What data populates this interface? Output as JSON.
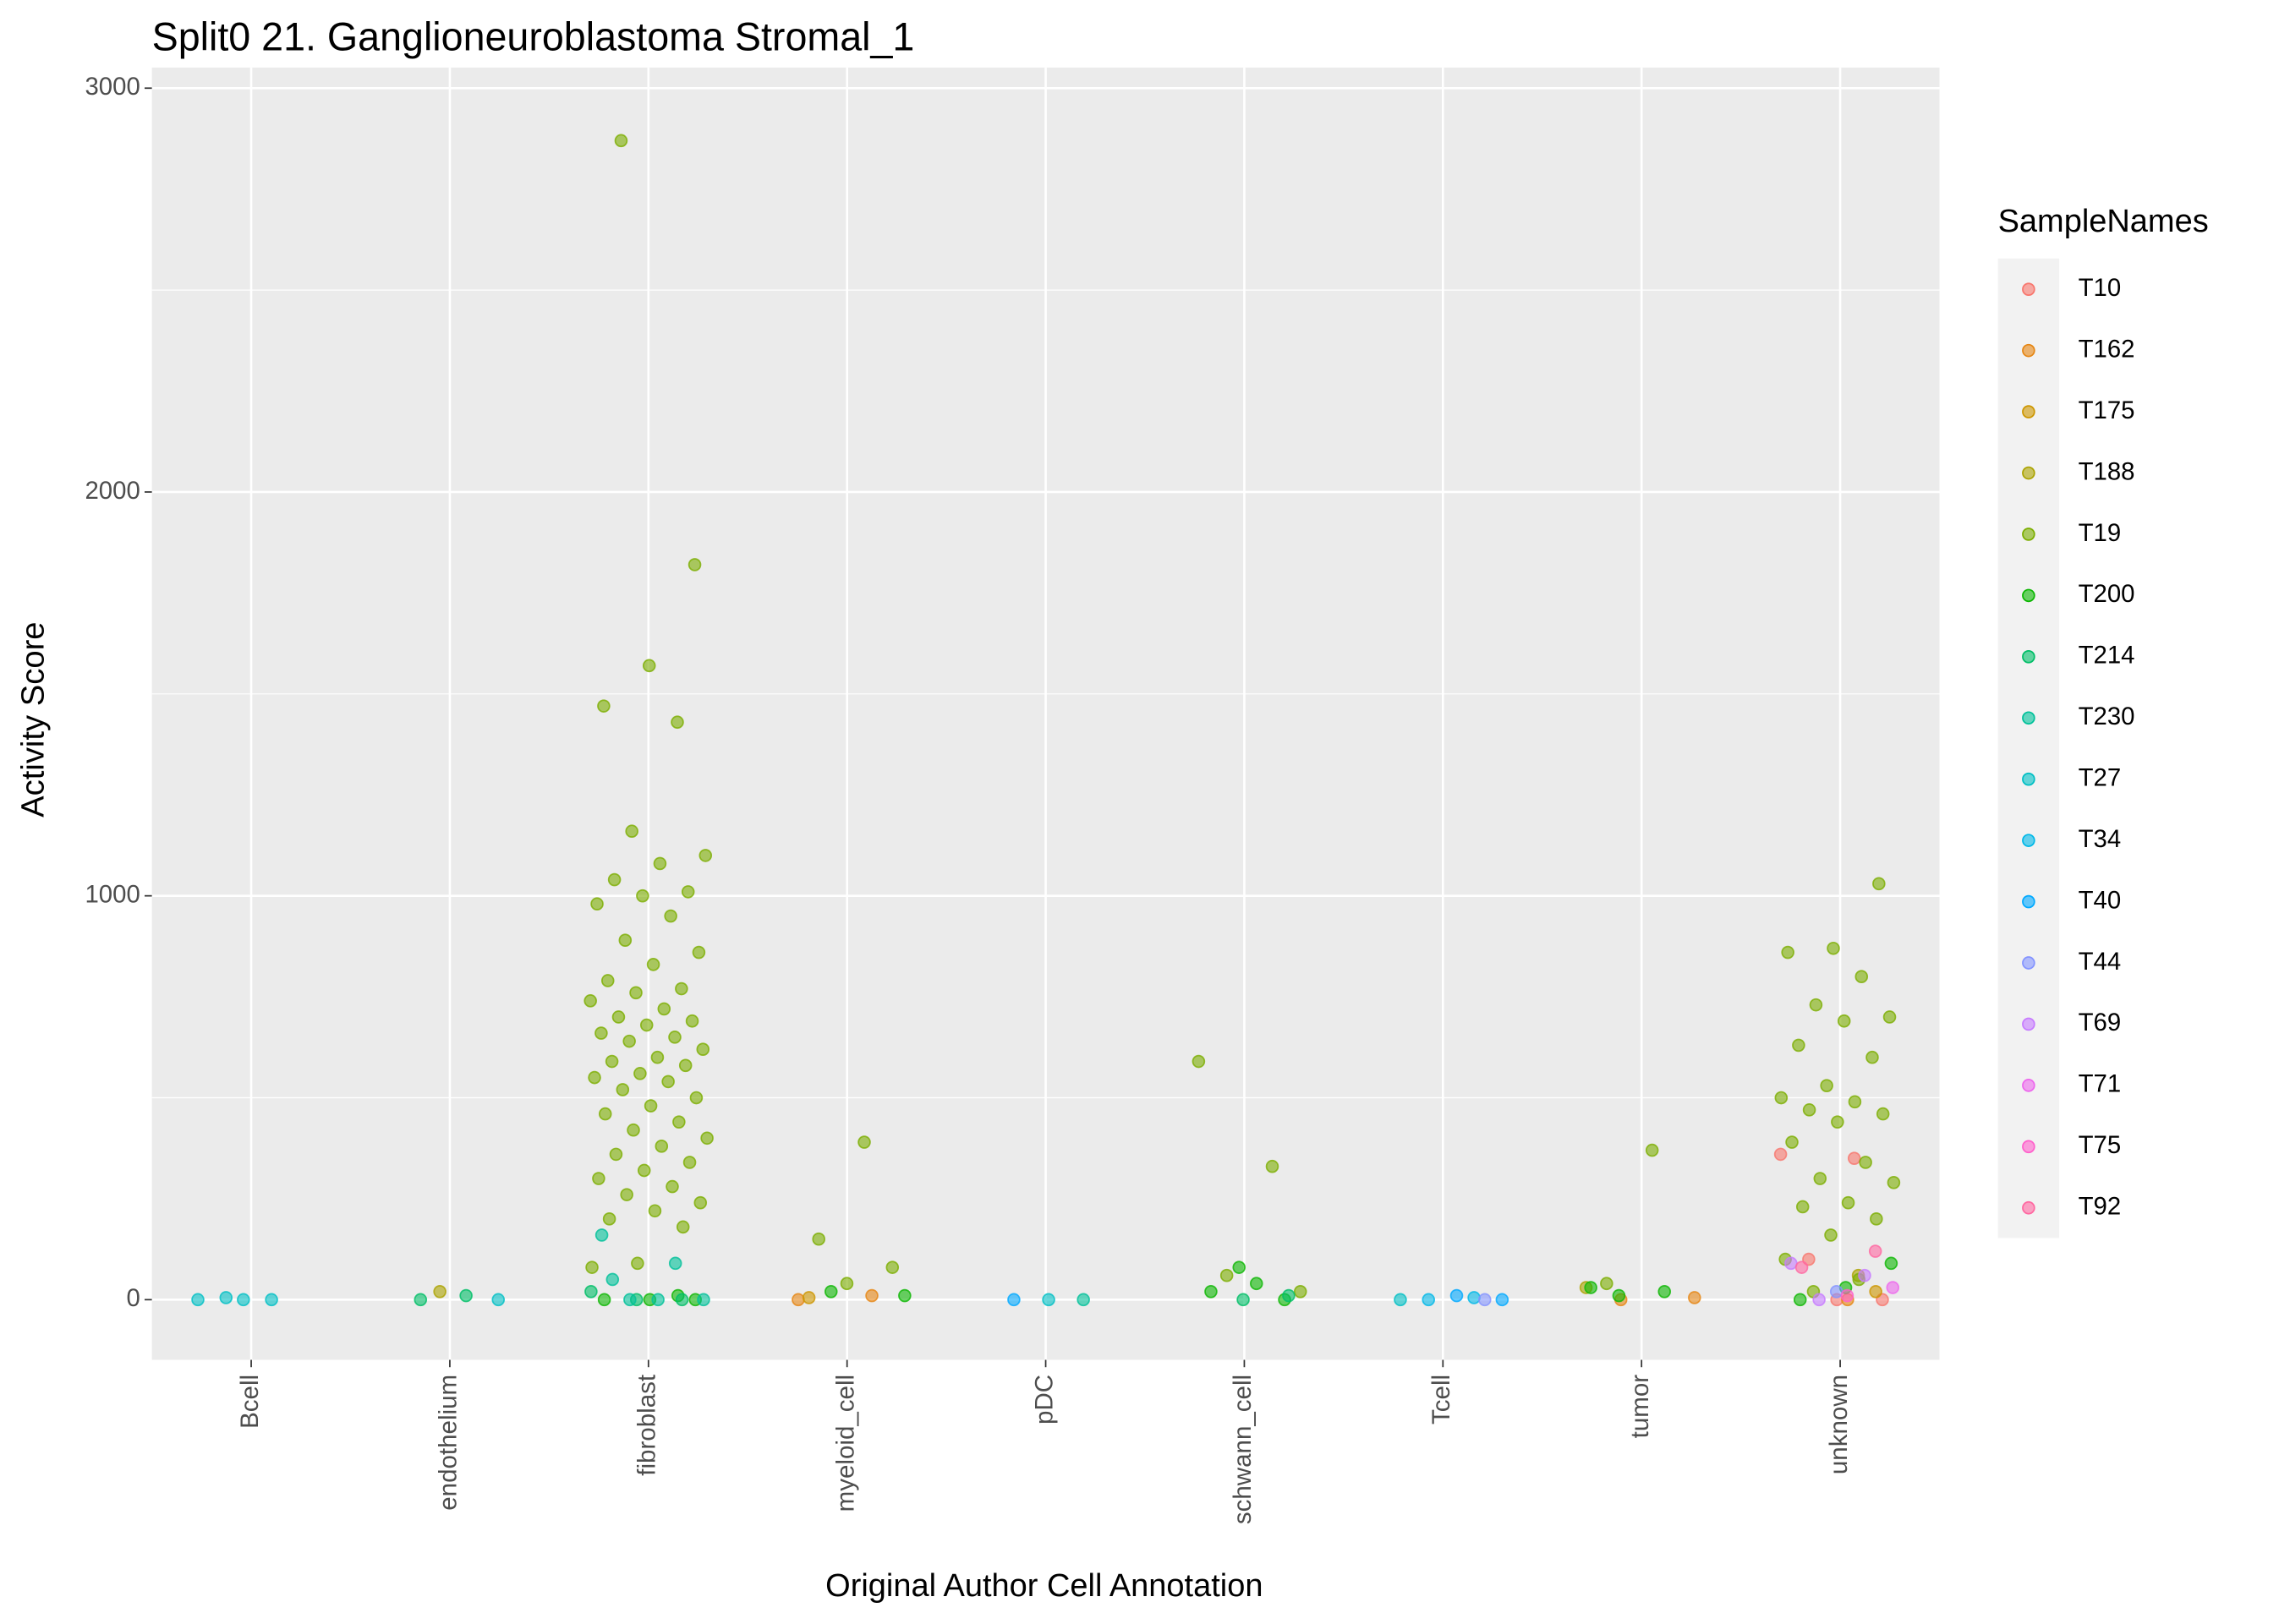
{
  "chart_data": {
    "type": "strip",
    "title": "Split0 21. Ganglioneuroblastoma Stromal_1",
    "x_label": "Original Author Cell Annotation",
    "y_label": "Activity Score",
    "legend_title": "SampleNames",
    "legend": "right",
    "grid": true,
    "categories": [
      "Bcell",
      "endothelium",
      "fibroblast",
      "myeloid_cell",
      "pDC",
      "schwann_cell",
      "Tcell",
      "tumor",
      "unknown"
    ],
    "ylim": [
      -149,
      3051
    ],
    "yticks": [
      0,
      1000,
      2000,
      3000
    ],
    "series": [
      {
        "name": "T10",
        "color": "#F8766D",
        "categories": [
          "unknown",
          "unknown",
          "unknown",
          "unknown",
          "unknown"
        ],
        "values": [
          360,
          350,
          100,
          0,
          0
        ]
      },
      {
        "name": "T162",
        "color": "#E68613",
        "categories": [
          "myeloid_cell",
          "myeloid_cell",
          "tumor",
          "tumor",
          "unknown"
        ],
        "values": [
          0,
          10,
          0,
          5,
          0
        ]
      },
      {
        "name": "T175",
        "color": "#CD9600",
        "categories": [
          "myeloid_cell",
          "unknown"
        ],
        "values": [
          5,
          20
        ]
      },
      {
        "name": "T188",
        "color": "#ABA300",
        "categories": [
          "endothelium",
          "tumor",
          "unknown"
        ],
        "values": [
          20,
          30,
          60
        ]
      },
      {
        "name": "T19",
        "color": "#7CAE00",
        "categories": [
          "fibroblast",
          "fibroblast",
          "fibroblast",
          "fibroblast",
          "fibroblast",
          "fibroblast",
          "fibroblast",
          "fibroblast",
          "fibroblast",
          "fibroblast",
          "fibroblast",
          "fibroblast",
          "fibroblast",
          "fibroblast",
          "fibroblast",
          "fibroblast",
          "fibroblast",
          "fibroblast",
          "fibroblast",
          "fibroblast",
          "fibroblast",
          "fibroblast",
          "fibroblast",
          "fibroblast",
          "fibroblast",
          "fibroblast",
          "fibroblast",
          "fibroblast",
          "fibroblast",
          "fibroblast",
          "fibroblast",
          "fibroblast",
          "fibroblast",
          "fibroblast",
          "fibroblast",
          "fibroblast",
          "fibroblast",
          "fibroblast",
          "fibroblast",
          "fibroblast",
          "fibroblast",
          "fibroblast",
          "fibroblast",
          "fibroblast",
          "fibroblast",
          "fibroblast",
          "fibroblast",
          "fibroblast",
          "fibroblast",
          "fibroblast",
          "fibroblast",
          "fibroblast",
          "fibroblast",
          "fibroblast",
          "myeloid_cell",
          "myeloid_cell",
          "myeloid_cell",
          "myeloid_cell",
          "schwann_cell",
          "schwann_cell",
          "schwann_cell",
          "schwann_cell",
          "tumor",
          "tumor",
          "unknown",
          "unknown",
          "unknown",
          "unknown",
          "unknown",
          "unknown",
          "unknown",
          "unknown",
          "unknown",
          "unknown",
          "unknown",
          "unknown",
          "unknown",
          "unknown",
          "unknown",
          "unknown",
          "unknown",
          "unknown",
          "unknown",
          "unknown",
          "unknown",
          "unknown",
          "unknown",
          "unknown",
          "unknown",
          "unknown"
        ],
        "values": [
          2870,
          1820,
          1570,
          1470,
          1430,
          1160,
          1100,
          1080,
          1040,
          1010,
          1000,
          980,
          950,
          890,
          860,
          830,
          790,
          770,
          760,
          740,
          720,
          700,
          690,
          680,
          660,
          650,
          640,
          620,
          600,
          590,
          580,
          560,
          550,
          540,
          520,
          500,
          480,
          460,
          440,
          420,
          400,
          380,
          360,
          340,
          320,
          300,
          280,
          260,
          240,
          220,
          200,
          180,
          90,
          80,
          390,
          150,
          80,
          40,
          590,
          330,
          60,
          20,
          370,
          40,
          1030,
          870,
          860,
          800,
          730,
          700,
          690,
          630,
          600,
          530,
          500,
          490,
          470,
          460,
          440,
          390,
          340,
          300,
          290,
          240,
          230,
          200,
          160,
          100,
          50,
          20
        ]
      },
      {
        "name": "T200",
        "color": "#0CB702",
        "categories": [
          "fibroblast",
          "fibroblast",
          "fibroblast",
          "fibroblast",
          "myeloid_cell",
          "myeloid_cell",
          "schwann_cell",
          "schwann_cell",
          "schwann_cell",
          "schwann_cell",
          "tumor",
          "tumor",
          "tumor",
          "unknown",
          "unknown",
          "unknown"
        ],
        "values": [
          0,
          0,
          0,
          10,
          20,
          10,
          40,
          20,
          0,
          80,
          30,
          20,
          10,
          90,
          30,
          0
        ]
      },
      {
        "name": "T214",
        "color": "#00BE67",
        "categories": [
          "fibroblast",
          "fibroblast",
          "fibroblast",
          "endothelium",
          "endothelium",
          "schwann_cell",
          "schwann_cell"
        ],
        "values": [
          0,
          0,
          20,
          10,
          0,
          10,
          0
        ]
      },
      {
        "name": "T230",
        "color": "#00C19A",
        "categories": [
          "fibroblast",
          "fibroblast",
          "fibroblast",
          "fibroblast",
          "fibroblast",
          "fibroblast",
          "pDC"
        ],
        "values": [
          160,
          90,
          0,
          0,
          0,
          50,
          0
        ]
      },
      {
        "name": "T27",
        "color": "#00BFC4",
        "categories": [
          "Bcell",
          "Bcell",
          "Bcell",
          "Bcell",
          "endothelium",
          "pDC",
          "Tcell"
        ],
        "values": [
          0,
          0,
          0,
          5,
          0,
          0,
          0
        ]
      },
      {
        "name": "T34",
        "color": "#00B8E7",
        "categories": [
          "Tcell",
          "Tcell"
        ],
        "values": [
          5,
          0
        ]
      },
      {
        "name": "T40",
        "color": "#00A9FF",
        "categories": [
          "Tcell",
          "Tcell",
          "pDC"
        ],
        "values": [
          0,
          10,
          0
        ]
      },
      {
        "name": "T44",
        "color": "#8494FF",
        "categories": [
          "Tcell",
          "unknown"
        ],
        "values": [
          0,
          20
        ]
      },
      {
        "name": "T69",
        "color": "#C77CFF",
        "categories": [
          "unknown",
          "unknown",
          "unknown"
        ],
        "values": [
          90,
          60,
          0
        ]
      },
      {
        "name": "T71",
        "color": "#ED68ED",
        "categories": [
          "unknown"
        ],
        "values": [
          30
        ]
      },
      {
        "name": "T75",
        "color": "#FF61CC",
        "categories": [
          "unknown"
        ],
        "values": [
          10
        ]
      },
      {
        "name": "T92",
        "color": "#FF68A1",
        "categories": [
          "unknown",
          "unknown"
        ],
        "values": [
          80,
          120
        ]
      }
    ]
  }
}
